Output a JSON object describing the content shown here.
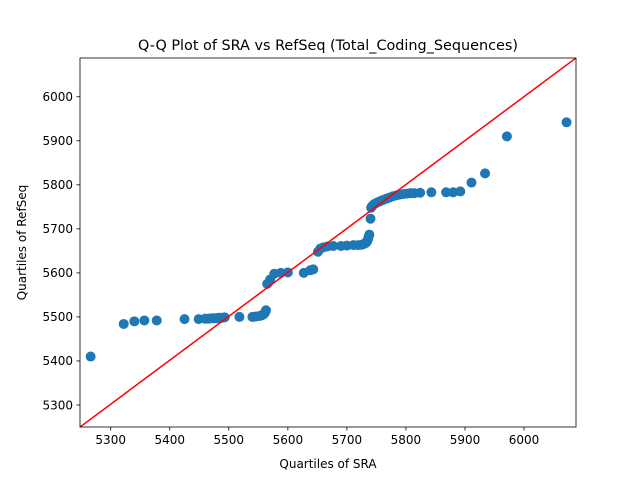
{
  "chart_data": {
    "type": "scatter",
    "title": "Q-Q Plot of SRA vs RefSeq (Total_Coding_Sequences)",
    "xlabel": "Quartiles of SRA",
    "ylabel": "Quartiles of RefSeq",
    "xlim": [
      5248,
      6088
    ],
    "ylim": [
      5250,
      6088
    ],
    "xticks": [
      5300,
      5400,
      5500,
      5600,
      5700,
      5800,
      5900,
      6000
    ],
    "yticks": [
      5300,
      5400,
      5500,
      5600,
      5700,
      5800,
      5900,
      6000
    ],
    "grid": false,
    "legend": "none",
    "colors": {
      "points": "#1f77b4",
      "reference_line": "#ff0000",
      "axes": "#000000"
    },
    "reference_line": {
      "from": [
        5248,
        5250
      ],
      "to": [
        6088,
        6088
      ]
    },
    "series": [
      {
        "points": [
          [
            5266,
            5410
          ],
          [
            5322,
            5484
          ],
          [
            5340,
            5490
          ],
          [
            5357,
            5492
          ],
          [
            5378,
            5492
          ],
          [
            5425,
            5495
          ],
          [
            5449,
            5495
          ],
          [
            5460,
            5496
          ],
          [
            5466,
            5496
          ],
          [
            5472,
            5497
          ],
          [
            5476,
            5497
          ],
          [
            5479,
            5497
          ],
          [
            5483,
            5498
          ],
          [
            5488,
            5498
          ],
          [
            5493,
            5499
          ],
          [
            5518,
            5500
          ],
          [
            5540,
            5500
          ],
          [
            5546,
            5501
          ],
          [
            5552,
            5502
          ],
          [
            5556,
            5504
          ],
          [
            5559,
            5506
          ],
          [
            5561,
            5509
          ],
          [
            5562,
            5512
          ],
          [
            5563,
            5515
          ],
          [
            5565,
            5575
          ],
          [
            5570,
            5585
          ],
          [
            5577,
            5598
          ],
          [
            5588,
            5600
          ],
          [
            5600,
            5601
          ],
          [
            5627,
            5600
          ],
          [
            5638,
            5606
          ],
          [
            5643,
            5608
          ],
          [
            5651,
            5648
          ],
          [
            5655,
            5655
          ],
          [
            5660,
            5658
          ],
          [
            5667,
            5660
          ],
          [
            5677,
            5661
          ],
          [
            5690,
            5661
          ],
          [
            5700,
            5662
          ],
          [
            5711,
            5663
          ],
          [
            5719,
            5663
          ],
          [
            5725,
            5664
          ],
          [
            5729,
            5666
          ],
          [
            5732,
            5668
          ],
          [
            5734,
            5671
          ],
          [
            5735,
            5674
          ],
          [
            5736,
            5678
          ],
          [
            5737,
            5683
          ],
          [
            5738,
            5687
          ],
          [
            5740,
            5723
          ],
          [
            5741,
            5748
          ],
          [
            5743,
            5752
          ],
          [
            5746,
            5756
          ],
          [
            5750,
            5759
          ],
          [
            5755,
            5762
          ],
          [
            5760,
            5765
          ],
          [
            5766,
            5768
          ],
          [
            5772,
            5771
          ],
          [
            5778,
            5774
          ],
          [
            5784,
            5776
          ],
          [
            5790,
            5778
          ],
          [
            5796,
            5779
          ],
          [
            5802,
            5780
          ],
          [
            5808,
            5781
          ],
          [
            5814,
            5781
          ],
          [
            5824,
            5782
          ],
          [
            5843,
            5783
          ],
          [
            5868,
            5783
          ],
          [
            5880,
            5783
          ],
          [
            5892,
            5785
          ],
          [
            5911,
            5805
          ],
          [
            5934,
            5826
          ],
          [
            5971,
            5910
          ],
          [
            6072,
            5942
          ]
        ]
      }
    ]
  }
}
